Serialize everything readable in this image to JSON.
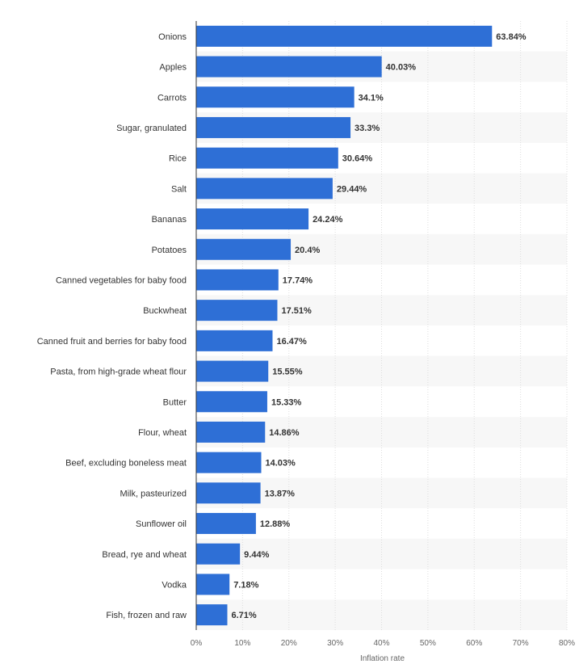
{
  "chart_data": {
    "type": "bar",
    "orientation": "horizontal",
    "categories": [
      "Onions",
      "Apples",
      "Carrots",
      "Sugar, granulated",
      "Rice",
      "Salt",
      "Bananas",
      "Potatoes",
      "Canned vegetables for baby food",
      "Buckwheat",
      "Canned fruit and berries for baby food",
      "Pasta, from high-grade wheat flour",
      "Butter",
      "Flour, wheat",
      "Beef, excluding boneless meat",
      "Milk, pasteurized",
      "Sunflower oil",
      "Bread, rye and wheat",
      "Vodka",
      "Fish, frozen and raw"
    ],
    "values": [
      63.84,
      40.03,
      34.1,
      33.3,
      30.64,
      29.44,
      24.24,
      20.4,
      17.74,
      17.51,
      16.47,
      15.55,
      15.33,
      14.86,
      14.03,
      13.87,
      12.88,
      9.44,
      7.18,
      6.71
    ],
    "value_labels": [
      "63.84%",
      "40.03%",
      "34.1%",
      "33.3%",
      "30.64%",
      "29.44%",
      "24.24%",
      "20.4%",
      "17.74%",
      "17.51%",
      "16.47%",
      "15.55%",
      "15.33%",
      "14.86%",
      "14.03%",
      "13.87%",
      "12.88%",
      "9.44%",
      "7.18%",
      "6.71%"
    ],
    "xlabel": "Inflation rate",
    "xlim": [
      0,
      80
    ],
    "x_ticks": [
      0,
      10,
      20,
      30,
      40,
      50,
      60,
      70,
      80
    ],
    "x_tick_labels": [
      "0%",
      "10%",
      "20%",
      "30%",
      "40%",
      "50%",
      "60%",
      "70%",
      "80%"
    ],
    "grid": true,
    "alternating_row_bands": true,
    "colors": {
      "bar": "#2e6fd6",
      "band": "#f7f7f7",
      "grid": "#dddddd",
      "axis": "#333333",
      "text": "#333333",
      "tick_text": "#666666"
    }
  }
}
